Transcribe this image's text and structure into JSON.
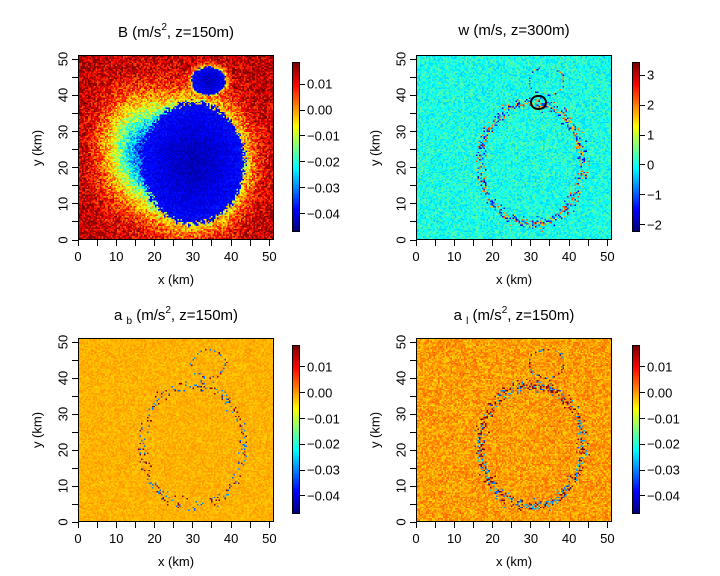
{
  "chart_data": [
    {
      "type": "heatmap",
      "title": {
        "main": "B",
        "sub": "",
        "units": "(m/s",
        "sup": "2",
        "end": ",  z=150m)"
      },
      "xlabel": "x (km)",
      "ylabel": "y (km)",
      "xlim": [
        0,
        51.2
      ],
      "ylim": [
        0,
        51.2
      ],
      "xticks": [
        "0",
        "10",
        "20",
        "30",
        "40",
        "50"
      ],
      "yticks": [
        "0",
        "10",
        "20",
        "30",
        "40",
        "50"
      ],
      "field": "buoyancy",
      "colorbar": {
        "range": [
          -0.047,
          0.0185
        ],
        "ticks": [
          0.01,
          0.0,
          -0.01,
          -0.02,
          -0.03,
          -0.04
        ],
        "tick_labels": [
          "0.01",
          "0.00",
          "−0.01",
          "−0.02",
          "−0.03",
          "−0.04"
        ]
      }
    },
    {
      "type": "heatmap",
      "title": {
        "main": "w",
        "sub": "",
        "units": "(m/s,",
        "sup": "",
        "end": " z=300m)"
      },
      "xlabel": "x (km)",
      "ylabel": "y (km)",
      "xlim": [
        0,
        51.2
      ],
      "ylim": [
        0,
        51.2
      ],
      "xticks": [
        "0",
        "10",
        "20",
        "30",
        "40",
        "50"
      ],
      "yticks": [
        "0",
        "10",
        "20",
        "30",
        "40",
        "50"
      ],
      "field": "vertical-velocity",
      "annotation": {
        "type": "circle",
        "x": 32,
        "y": 38,
        "r": 2
      },
      "colorbar": {
        "range": [
          -2.25,
          3.45
        ],
        "ticks": [
          3,
          2,
          1,
          0,
          -1,
          -2
        ],
        "tick_labels": [
          "3",
          "2",
          "1",
          "0",
          "−1",
          "−2"
        ]
      }
    },
    {
      "type": "heatmap",
      "title": {
        "main": "a",
        "sub": "b",
        "units": " (m/s",
        "sup": "2",
        "end": ",  z=150m)"
      },
      "xlabel": "x (km)",
      "ylabel": "y (km)",
      "xlim": [
        0,
        51.2
      ],
      "ylim": [
        0,
        51.2
      ],
      "xticks": [
        "0",
        "10",
        "20",
        "30",
        "40",
        "50"
      ],
      "yticks": [
        "0",
        "10",
        "20",
        "30",
        "40",
        "50"
      ],
      "field": "buoyancy-acceleration",
      "colorbar": {
        "range": [
          -0.047,
          0.0185
        ],
        "ticks": [
          0.01,
          0.0,
          -0.01,
          -0.02,
          -0.03,
          -0.04
        ],
        "tick_labels": [
          "0.01",
          "0.00",
          "−0.01",
          "−0.02",
          "−0.03",
          "−0.04"
        ]
      }
    },
    {
      "type": "heatmap",
      "title": {
        "main": "a",
        "sub": "l",
        "units": " (m/s",
        "sup": "2",
        "end": ",  z=150m)"
      },
      "xlabel": "x (km)",
      "ylabel": "y (km)",
      "xlim": [
        0,
        51.2
      ],
      "ylim": [
        0,
        51.2
      ],
      "xticks": [
        "0",
        "10",
        "20",
        "30",
        "40",
        "50"
      ],
      "yticks": [
        "0",
        "10",
        "20",
        "30",
        "40",
        "50"
      ],
      "field": "lateral-acceleration",
      "colorbar": {
        "range": [
          -0.047,
          0.0185
        ],
        "ticks": [
          0.01,
          0.0,
          -0.01,
          -0.02,
          -0.03,
          -0.04
        ],
        "tick_labels": [
          "0.01",
          "0.00",
          "−0.01",
          "−0.02",
          "−0.03",
          "−0.04"
        ]
      }
    }
  ]
}
